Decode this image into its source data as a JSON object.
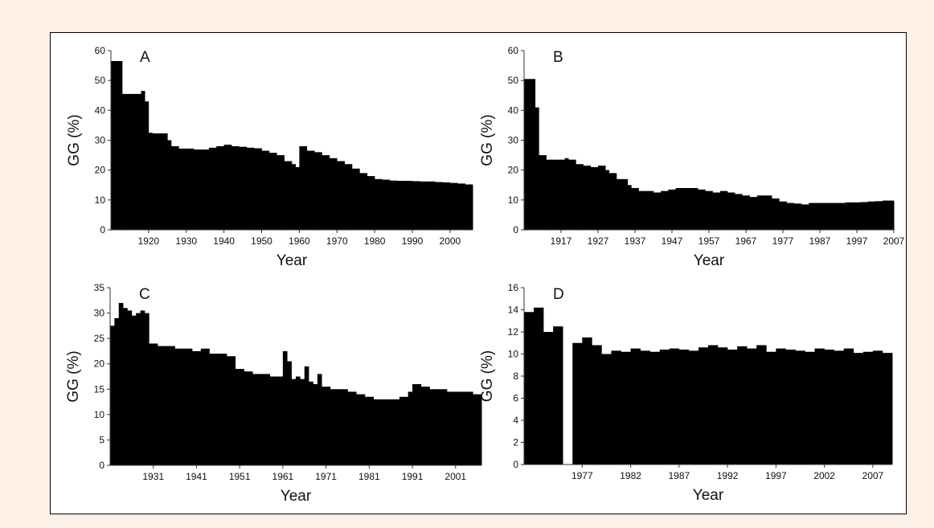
{
  "figure": {
    "background": "#fdf0e6",
    "frame_color": "#000000",
    "bar_color": "#000000"
  },
  "chart_data": [
    {
      "type": "area",
      "panel_label": "A",
      "xlabel": "Year",
      "ylabel": "GG (%)",
      "xlim": [
        1910,
        2006
      ],
      "ylim": [
        0,
        60
      ],
      "yticks": [
        0,
        10,
        20,
        30,
        40,
        50,
        60
      ],
      "xticks": [
        1920,
        1930,
        1940,
        1950,
        1960,
        1970,
        1980,
        1990,
        2000
      ],
      "grid": false,
      "x": [
        1910,
        1912,
        1913,
        1915,
        1917,
        1918,
        1919,
        1920,
        1921,
        1923,
        1925,
        1926,
        1928,
        1930,
        1932,
        1934,
        1936,
        1938,
        1940,
        1942,
        1944,
        1946,
        1948,
        1950,
        1952,
        1954,
        1956,
        1958,
        1959,
        1960,
        1962,
        1964,
        1966,
        1968,
        1970,
        1972,
        1974,
        1976,
        1978,
        1980,
        1982,
        1984,
        1986,
        1988,
        1990,
        1992,
        1994,
        1996,
        1998,
        2000,
        2002,
        2004,
        2006
      ],
      "y": [
        56.5,
        56.5,
        45.5,
        45.5,
        45.5,
        46.5,
        43,
        32.5,
        32.3,
        32.3,
        30,
        28,
        27.2,
        27.2,
        26.9,
        26.9,
        27.5,
        28,
        28.5,
        28,
        27.8,
        27.5,
        27.3,
        26.5,
        25.8,
        25,
        23,
        22,
        21,
        28,
        26.5,
        26,
        25,
        24,
        23,
        22,
        20.5,
        19,
        18,
        17,
        16.8,
        16.5,
        16.4,
        16.4,
        16.3,
        16.2,
        16.2,
        16,
        15.9,
        15.7,
        15.5,
        15.2,
        15
      ]
    },
    {
      "type": "area",
      "panel_label": "B",
      "xlabel": "Year",
      "ylabel": "GG (%)",
      "xlim": [
        1907,
        2007
      ],
      "ylim": [
        0,
        60
      ],
      "yticks": [
        0,
        10,
        20,
        30,
        40,
        50,
        60
      ],
      "xticks": [
        1917,
        1927,
        1937,
        1947,
        1957,
        1967,
        1977,
        1987,
        1997,
        2007
      ],
      "grid": false,
      "x": [
        1907,
        1909,
        1910,
        1911,
        1913,
        1915,
        1917,
        1918,
        1919,
        1921,
        1923,
        1925,
        1927,
        1929,
        1930,
        1932,
        1934,
        1935,
        1936,
        1938,
        1940,
        1942,
        1944,
        1946,
        1948,
        1950,
        1952,
        1954,
        1956,
        1958,
        1960,
        1962,
        1964,
        1966,
        1968,
        1970,
        1972,
        1974,
        1976,
        1978,
        1980,
        1982,
        1984,
        1986,
        1988,
        1990,
        1992,
        1994,
        1996,
        1998,
        2000,
        2002,
        2004,
        2007
      ],
      "y": [
        50.5,
        50.5,
        41,
        25,
        23.5,
        23.5,
        23.5,
        24,
        23.5,
        22,
        21.5,
        21,
        21.5,
        20,
        19,
        17,
        17,
        15,
        14,
        13,
        13,
        12.5,
        13,
        13.5,
        14,
        14,
        14,
        13.5,
        13,
        12.5,
        13,
        12.5,
        12,
        11.5,
        11,
        11.5,
        11.5,
        10.5,
        9.5,
        9,
        8.8,
        8.5,
        9,
        9,
        9,
        9,
        9,
        9.2,
        9.2,
        9.3,
        9.5,
        9.6,
        9.8,
        9.5
      ]
    },
    {
      "type": "area",
      "panel_label": "C",
      "xlabel": "Year",
      "ylabel": "GG (%)",
      "xlim": [
        1921,
        2007
      ],
      "ylim": [
        0,
        35
      ],
      "yticks": [
        0,
        5,
        10,
        15,
        20,
        25,
        30,
        35
      ],
      "xticks": [
        1931,
        1941,
        1951,
        1961,
        1971,
        1981,
        1991,
        2001
      ],
      "grid": false,
      "x": [
        1921,
        1922,
        1923,
        1924,
        1925,
        1926,
        1927,
        1928,
        1929,
        1930,
        1932,
        1934,
        1936,
        1938,
        1940,
        1942,
        1944,
        1946,
        1948,
        1950,
        1952,
        1954,
        1956,
        1958,
        1960,
        1961,
        1962,
        1963,
        1964,
        1965,
        1966,
        1967,
        1968,
        1969,
        1970,
        1972,
        1974,
        1976,
        1978,
        1980,
        1982,
        1984,
        1986,
        1988,
        1990,
        1991,
        1993,
        1995,
        1997,
        1999,
        2001,
        2003,
        2005,
        2007
      ],
      "y": [
        27.5,
        29,
        32,
        31,
        30.5,
        29.5,
        30,
        30.5,
        30,
        24,
        23.5,
        23.5,
        23,
        23,
        22.5,
        23,
        22,
        22,
        21.5,
        19,
        18.5,
        18,
        18,
        17.5,
        17.5,
        22.5,
        20.5,
        17,
        17.5,
        17,
        19.5,
        16.5,
        16,
        18,
        15.5,
        15,
        15,
        14.5,
        14,
        13.5,
        13,
        13,
        13,
        13.5,
        14.5,
        16,
        15.5,
        15,
        15,
        14.5,
        14.5,
        14.5,
        14,
        14
      ]
    },
    {
      "type": "area",
      "panel_label": "D",
      "xlabel": "Year",
      "ylabel": "GG (%)",
      "xlim": [
        1971,
        2009
      ],
      "ylim": [
        0,
        16
      ],
      "yticks": [
        0,
        2,
        4,
        6,
        8,
        10,
        12,
        14,
        16
      ],
      "xticks": [
        1977,
        1982,
        1987,
        1992,
        1997,
        2002,
        2007
      ],
      "grid": false,
      "x": [
        1971,
        1972,
        1973,
        1974,
        1975,
        1976,
        1977,
        1978,
        1979,
        1980,
        1981,
        1982,
        1983,
        1984,
        1985,
        1986,
        1987,
        1988,
        1989,
        1990,
        1991,
        1992,
        1993,
        1994,
        1995,
        1996,
        1997,
        1998,
        1999,
        2000,
        2001,
        2002,
        2003,
        2004,
        2005,
        2006,
        2007,
        2008,
        2009
      ],
      "y": [
        13.8,
        14.2,
        12,
        12.5,
        0,
        11,
        11.5,
        10.8,
        10,
        10.3,
        10.2,
        10.5,
        10.3,
        10.2,
        10.4,
        10.5,
        10.4,
        10.3,
        10.6,
        10.8,
        10.6,
        10.4,
        10.7,
        10.5,
        10.8,
        10.2,
        10.5,
        10.4,
        10.3,
        10.2,
        10.5,
        10.4,
        10.3,
        10.5,
        10.1,
        10.2,
        10.3,
        10.1,
        10.1
      ]
    }
  ]
}
